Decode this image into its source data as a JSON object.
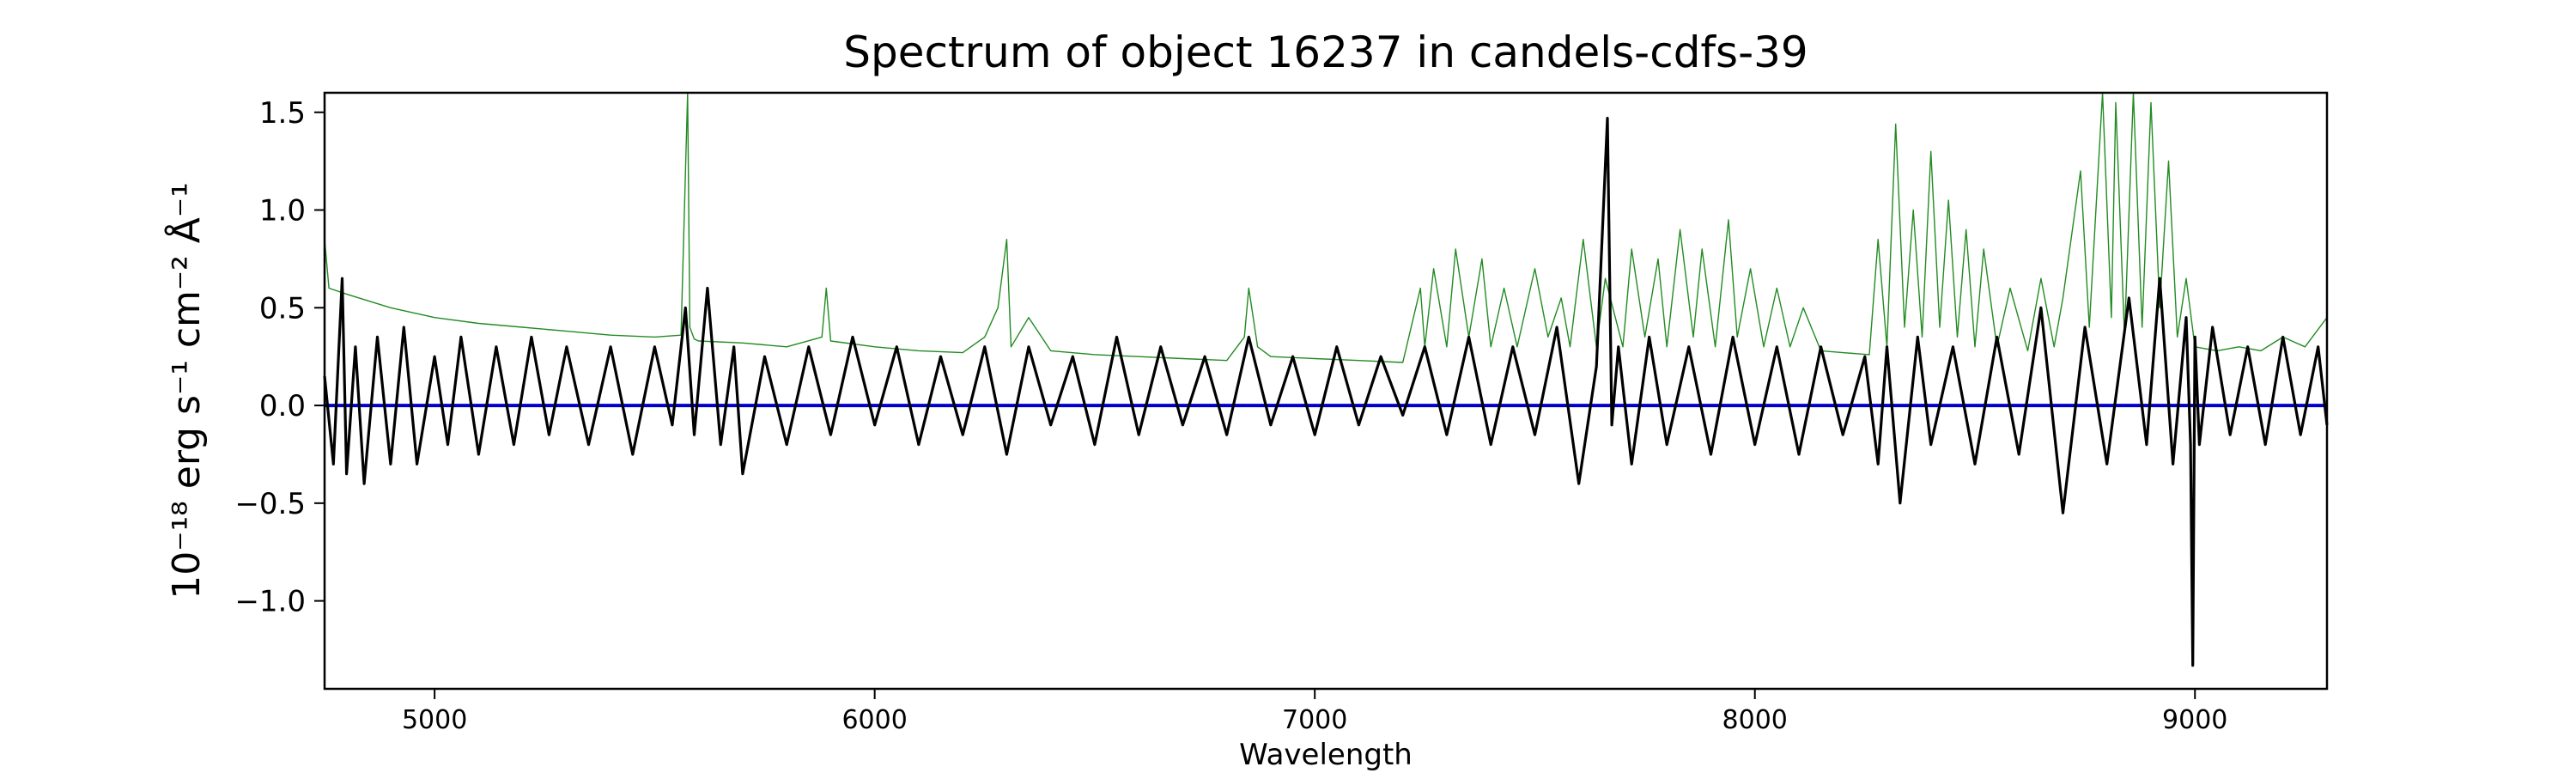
{
  "chart_data": {
    "type": "line",
    "title": "Spectrum of object 16237 in candels-cdfs-39",
    "xlabel": "Wavelength",
    "ylabel": "10⁻¹⁸ erg s⁻¹ cm⁻² Å⁻¹",
    "xlim": [
      4750,
      9300
    ],
    "ylim": [
      -1.45,
      1.6
    ],
    "xticks": [
      5000,
      6000,
      7000,
      8000,
      9000
    ],
    "xtick_labels": [
      "5000",
      "6000",
      "7000",
      "8000",
      "9000"
    ],
    "yticks": [
      -1.0,
      -0.5,
      0.0,
      0.5,
      1.0,
      1.5
    ],
    "ytick_labels": [
      "−1.0",
      "−0.5",
      "0.0",
      "0.5",
      "1.0",
      "1.5"
    ],
    "grid": false,
    "colors": {
      "flux": "#000000",
      "error": "#228b22",
      "zero": "#0000cc"
    },
    "series": [
      {
        "role": "flux",
        "color": "#000000",
        "x": [
          4750,
          4770,
          4790,
          4800,
          4820,
          4840,
          4870,
          4900,
          4930,
          4960,
          5000,
          5030,
          5060,
          5100,
          5140,
          5180,
          5220,
          5260,
          5300,
          5350,
          5400,
          5450,
          5500,
          5540,
          5570,
          5590,
          5620,
          5650,
          5680,
          5700,
          5750,
          5800,
          5850,
          5900,
          5950,
          6000,
          6050,
          6100,
          6150,
          6200,
          6250,
          6300,
          6350,
          6400,
          6450,
          6500,
          6550,
          6600,
          6650,
          6700,
          6750,
          6800,
          6850,
          6900,
          6950,
          7000,
          7050,
          7100,
          7150,
          7200,
          7250,
          7300,
          7350,
          7400,
          7450,
          7500,
          7550,
          7600,
          7640,
          7665,
          7675,
          7690,
          7720,
          7760,
          7800,
          7850,
          7900,
          7950,
          8000,
          8050,
          8100,
          8150,
          8200,
          8250,
          8280,
          8300,
          8330,
          8370,
          8400,
          8450,
          8500,
          8550,
          8600,
          8650,
          8700,
          8750,
          8800,
          8850,
          8890,
          8920,
          8950,
          8980,
          8990,
          8995,
          9000,
          9010,
          9040,
          9080,
          9120,
          9160,
          9200,
          9240,
          9280,
          9300
        ],
        "y": [
          0.15,
          -0.3,
          0.65,
          -0.35,
          0.3,
          -0.4,
          0.35,
          -0.3,
          0.4,
          -0.3,
          0.25,
          -0.2,
          0.35,
          -0.25,
          0.3,
          -0.2,
          0.35,
          -0.15,
          0.3,
          -0.2,
          0.3,
          -0.25,
          0.3,
          -0.1,
          0.5,
          -0.15,
          0.6,
          -0.2,
          0.3,
          -0.35,
          0.25,
          -0.2,
          0.3,
          -0.15,
          0.35,
          -0.1,
          0.3,
          -0.2,
          0.25,
          -0.15,
          0.3,
          -0.25,
          0.3,
          -0.1,
          0.25,
          -0.2,
          0.35,
          -0.15,
          0.3,
          -0.1,
          0.25,
          -0.15,
          0.35,
          -0.1,
          0.25,
          -0.15,
          0.3,
          -0.1,
          0.25,
          -0.05,
          0.3,
          -0.15,
          0.35,
          -0.2,
          0.3,
          -0.15,
          0.4,
          -0.4,
          0.2,
          1.47,
          -0.1,
          0.3,
          -0.3,
          0.35,
          -0.2,
          0.3,
          -0.25,
          0.35,
          -0.2,
          0.3,
          -0.25,
          0.3,
          -0.15,
          0.25,
          -0.3,
          0.3,
          -0.5,
          0.35,
          -0.2,
          0.3,
          -0.3,
          0.35,
          -0.25,
          0.5,
          -0.55,
          0.4,
          -0.3,
          0.55,
          -0.2,
          0.65,
          -0.3,
          0.45,
          -0.2,
          -1.33,
          0.35,
          -0.2,
          0.4,
          -0.15,
          0.3,
          -0.2,
          0.35,
          -0.15,
          0.3,
          -0.1
        ]
      },
      {
        "role": "error",
        "color": "#228b22",
        "x": [
          4750,
          4760,
          4800,
          4900,
          5000,
          5100,
          5200,
          5300,
          5400,
          5500,
          5560,
          5575,
          5580,
          5590,
          5600,
          5700,
          5800,
          5880,
          5890,
          5900,
          6000,
          6100,
          6200,
          6250,
          6280,
          6300,
          6310,
          6350,
          6400,
          6500,
          6600,
          6700,
          6800,
          6840,
          6850,
          6870,
          6900,
          7000,
          7100,
          7200,
          7240,
          7250,
          7270,
          7300,
          7320,
          7350,
          7380,
          7400,
          7430,
          7460,
          7500,
          7530,
          7560,
          7580,
          7610,
          7640,
          7660,
          7700,
          7720,
          7750,
          7780,
          7800,
          7830,
          7860,
          7880,
          7910,
          7940,
          7960,
          7990,
          8020,
          8050,
          8080,
          8110,
          8150,
          8200,
          8260,
          8280,
          8300,
          8320,
          8340,
          8360,
          8380,
          8400,
          8420,
          8440,
          8460,
          8480,
          8500,
          8520,
          8550,
          8580,
          8620,
          8650,
          8680,
          8700,
          8740,
          8760,
          8790,
          8810,
          8820,
          8840,
          8860,
          8880,
          8900,
          8920,
          8940,
          8960,
          8980,
          9000,
          9050,
          9100,
          9150,
          9200,
          9250,
          9300
        ],
        "y": [
          0.85,
          0.6,
          0.57,
          0.5,
          0.45,
          0.42,
          0.4,
          0.38,
          0.36,
          0.35,
          0.36,
          1.6,
          0.4,
          0.34,
          0.33,
          0.32,
          0.3,
          0.35,
          0.6,
          0.33,
          0.3,
          0.28,
          0.27,
          0.35,
          0.5,
          0.85,
          0.3,
          0.45,
          0.28,
          0.26,
          0.25,
          0.24,
          0.23,
          0.35,
          0.6,
          0.3,
          0.25,
          0.24,
          0.23,
          0.22,
          0.6,
          0.3,
          0.7,
          0.3,
          0.8,
          0.35,
          0.75,
          0.3,
          0.6,
          0.3,
          0.7,
          0.35,
          0.55,
          0.3,
          0.85,
          0.3,
          0.65,
          0.3,
          0.8,
          0.35,
          0.75,
          0.3,
          0.9,
          0.35,
          0.8,
          0.3,
          0.95,
          0.35,
          0.7,
          0.3,
          0.6,
          0.3,
          0.5,
          0.28,
          0.27,
          0.26,
          0.85,
          0.3,
          1.44,
          0.4,
          1.0,
          0.35,
          1.3,
          0.4,
          1.05,
          0.35,
          0.9,
          0.3,
          0.8,
          0.3,
          0.6,
          0.28,
          0.65,
          0.3,
          0.55,
          1.2,
          0.4,
          1.6,
          0.45,
          1.55,
          0.35,
          1.6,
          0.4,
          1.55,
          0.5,
          1.25,
          0.35,
          0.65,
          0.3,
          0.28,
          0.3,
          0.28,
          0.35,
          0.3,
          0.45
        ]
      },
      {
        "role": "zero",
        "color": "#0000cc",
        "x": [
          4750,
          9300
        ],
        "y": [
          0.0,
          0.0
        ]
      }
    ]
  }
}
